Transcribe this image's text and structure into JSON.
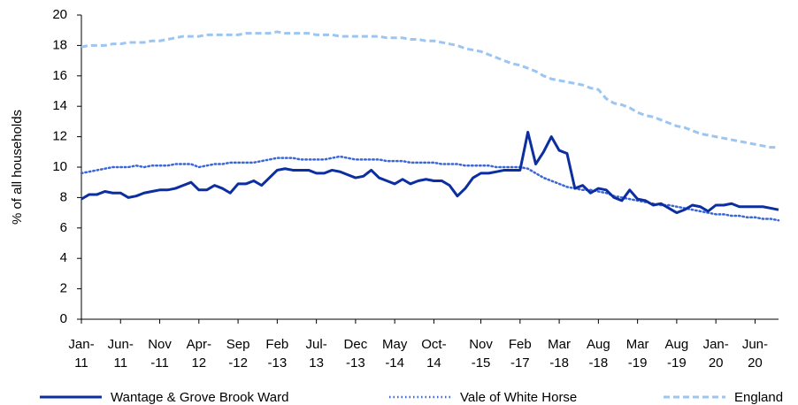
{
  "chart_data": {
    "type": "line",
    "y_label": "% of all households",
    "ylim": [
      0,
      20
    ],
    "yticks": [
      0,
      2,
      4,
      6,
      8,
      10,
      12,
      14,
      16,
      18,
      20
    ],
    "categories": [
      "Jan-\n11",
      null,
      null,
      null,
      null,
      "Jun-\n11",
      null,
      null,
      null,
      null,
      "Nov\n-11",
      null,
      null,
      null,
      null,
      "Apr-\n12",
      null,
      null,
      null,
      null,
      "Sep\n-12",
      null,
      null,
      null,
      null,
      "Feb\n-13",
      null,
      null,
      null,
      null,
      "Jul-\n13",
      null,
      null,
      null,
      null,
      "Dec\n-13",
      null,
      null,
      null,
      null,
      "May\n-14",
      null,
      null,
      null,
      null,
      "Oct-\n14",
      null,
      null,
      null,
      null,
      null,
      "Nov\n-15",
      null,
      null,
      null,
      null,
      "Feb\n-17",
      null,
      null,
      null,
      null,
      "Mar\n-18",
      null,
      null,
      null,
      null,
      "Aug\n-18",
      null,
      null,
      null,
      null,
      "Mar\n-19",
      null,
      null,
      null,
      null,
      "Aug\n-19",
      null,
      null,
      null,
      null,
      "Jan-\n20",
      null,
      null,
      null,
      null,
      "Jun-\n20",
      null,
      null,
      null
    ],
    "series": [
      {
        "name": "Wantage & Grove Brook Ward",
        "color": "#0b2ea0",
        "dash": "solid",
        "values": [
          7.9,
          8.2,
          8.2,
          8.4,
          8.3,
          8.3,
          8.0,
          8.1,
          8.3,
          8.4,
          8.5,
          8.5,
          8.6,
          8.8,
          9.0,
          8.5,
          8.5,
          8.8,
          8.6,
          8.3,
          8.9,
          8.9,
          9.1,
          8.8,
          9.3,
          9.8,
          9.9,
          9.8,
          9.8,
          9.8,
          9.6,
          9.6,
          9.8,
          9.7,
          9.5,
          9.3,
          9.4,
          9.8,
          9.3,
          9.1,
          8.9,
          9.2,
          8.9,
          9.1,
          9.2,
          9.1,
          9.1,
          8.8,
          8.1,
          8.6,
          9.3,
          9.6,
          9.6,
          9.7,
          9.8,
          9.8,
          9.8,
          12.3,
          10.2,
          11.0,
          12.0,
          11.1,
          10.9,
          8.6,
          8.8,
          8.3,
          8.6,
          8.5,
          8.0,
          7.8,
          8.5,
          7.9,
          7.8,
          7.5,
          7.6,
          7.3,
          7.0,
          7.2,
          7.5,
          7.4,
          7.1,
          7.5,
          7.5,
          7.6,
          7.4,
          7.4,
          7.4,
          7.4,
          7.3,
          7.2
        ]
      },
      {
        "name": "Vale of White Horse",
        "color": "#3a66d8",
        "dash": "dotted",
        "values": [
          9.6,
          9.7,
          9.8,
          9.9,
          10.0,
          10.0,
          10.0,
          10.1,
          10.0,
          10.1,
          10.1,
          10.1,
          10.2,
          10.2,
          10.2,
          10.0,
          10.1,
          10.2,
          10.2,
          10.3,
          10.3,
          10.3,
          10.3,
          10.4,
          10.5,
          10.6,
          10.6,
          10.6,
          10.5,
          10.5,
          10.5,
          10.5,
          10.6,
          10.7,
          10.6,
          10.5,
          10.5,
          10.5,
          10.5,
          10.4,
          10.4,
          10.4,
          10.3,
          10.3,
          10.3,
          10.3,
          10.2,
          10.2,
          10.2,
          10.1,
          10.1,
          10.1,
          10.1,
          10.0,
          10.0,
          10.0,
          10.0,
          9.9,
          9.6,
          9.3,
          9.1,
          8.9,
          8.7,
          8.6,
          8.5,
          8.5,
          8.4,
          8.3,
          8.1,
          8.0,
          7.9,
          7.8,
          7.7,
          7.6,
          7.5,
          7.5,
          7.4,
          7.3,
          7.2,
          7.1,
          7.0,
          6.9,
          6.9,
          6.8,
          6.8,
          6.7,
          6.7,
          6.6,
          6.6,
          6.5
        ]
      },
      {
        "name": "England",
        "color": "#9cc5f2",
        "dash": "dashed",
        "values": [
          17.9,
          18.0,
          18.0,
          18.0,
          18.1,
          18.1,
          18.2,
          18.2,
          18.2,
          18.3,
          18.3,
          18.4,
          18.5,
          18.6,
          18.6,
          18.6,
          18.7,
          18.7,
          18.7,
          18.7,
          18.7,
          18.8,
          18.8,
          18.8,
          18.8,
          18.9,
          18.8,
          18.8,
          18.8,
          18.8,
          18.7,
          18.7,
          18.7,
          18.6,
          18.6,
          18.6,
          18.6,
          18.6,
          18.6,
          18.5,
          18.5,
          18.5,
          18.4,
          18.4,
          18.3,
          18.3,
          18.2,
          18.1,
          18.0,
          17.8,
          17.7,
          17.6,
          17.4,
          17.2,
          17.0,
          16.8,
          16.7,
          16.5,
          16.3,
          16.0,
          15.8,
          15.7,
          15.6,
          15.5,
          15.4,
          15.2,
          15.1,
          14.5,
          14.2,
          14.1,
          13.9,
          13.6,
          13.4,
          13.3,
          13.1,
          12.9,
          12.7,
          12.6,
          12.4,
          12.2,
          12.1,
          12.0,
          11.9,
          11.8,
          11.7,
          11.6,
          11.5,
          11.4,
          11.3,
          11.3
        ]
      }
    ],
    "legend": "bottom"
  }
}
